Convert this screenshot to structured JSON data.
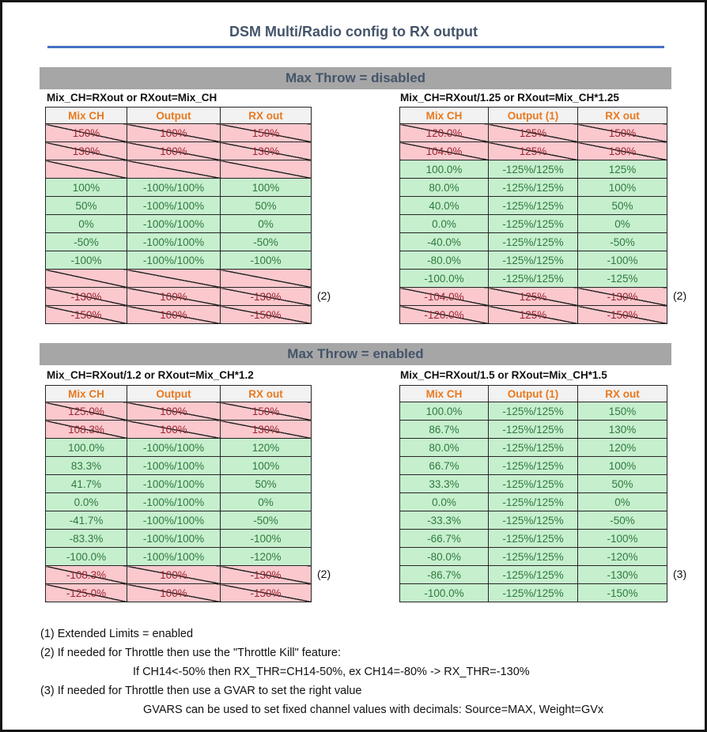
{
  "title": "DSM Multi/Radio config to RX output",
  "colors": {
    "heading_text": "#44546A",
    "title_rule": "#4472C4",
    "section_band_bg": "#A6A6A6",
    "column_header_bg": "#F2F2F2",
    "column_header_text": "#E8791E",
    "good_bg": "#C6EFCE",
    "good_text": "#2F7A3D",
    "bad_bg": "#FAC8CD",
    "bad_text": "#9C2632"
  },
  "sections": [
    {
      "heading": "Max Throw = disabled",
      "tables": [
        {
          "subtitle": "Mix_CH=RXout or RXout=Mix_CH",
          "columns": [
            "Mix CH",
            "Output",
            "RX out"
          ],
          "note": "(2)",
          "rows": [
            {
              "state": "crossed",
              "cells": [
                "150%",
                "100%",
                "150%"
              ]
            },
            {
              "state": "crossed",
              "cells": [
                "130%",
                "100%",
                "130%"
              ]
            },
            {
              "state": "crossed",
              "cells": [
                "",
                "",
                ""
              ]
            },
            {
              "state": "ok",
              "cells": [
                "100%",
                "-100%/100%",
                "100%"
              ]
            },
            {
              "state": "ok",
              "cells": [
                "50%",
                "-100%/100%",
                "50%"
              ]
            },
            {
              "state": "ok",
              "cells": [
                "0%",
                "-100%/100%",
                "0%"
              ]
            },
            {
              "state": "ok",
              "cells": [
                "-50%",
                "-100%/100%",
                "-50%"
              ]
            },
            {
              "state": "ok",
              "cells": [
                "-100%",
                "-100%/100%",
                "-100%"
              ]
            },
            {
              "state": "crossed",
              "cells": [
                "",
                "",
                ""
              ]
            },
            {
              "state": "crossed",
              "cells": [
                "-130%",
                "100%",
                "-130%"
              ]
            },
            {
              "state": "crossed",
              "cells": [
                "-150%",
                "100%",
                "-150%"
              ]
            }
          ]
        },
        {
          "subtitle": "Mix_CH=RXout/1.25 or RXout=Mix_CH*1.25",
          "columns": [
            "Mix CH",
            "Output (1)",
            "RX out"
          ],
          "note": "(2)",
          "rows": [
            {
              "state": "crossed",
              "cells": [
                "120.0%",
                "125%",
                "150%"
              ]
            },
            {
              "state": "crossed",
              "cells": [
                "104.0%",
                "125%",
                "130%"
              ]
            },
            {
              "state": "ok",
              "cells": [
                "100.0%",
                "-125%/125%",
                "125%"
              ]
            },
            {
              "state": "ok",
              "cells": [
                "80.0%",
                "-125%/125%",
                "100%"
              ]
            },
            {
              "state": "ok",
              "cells": [
                "40.0%",
                "-125%/125%",
                "50%"
              ]
            },
            {
              "state": "ok",
              "cells": [
                "0.0%",
                "-125%/125%",
                "0%"
              ]
            },
            {
              "state": "ok",
              "cells": [
                "-40.0%",
                "-125%/125%",
                "-50%"
              ]
            },
            {
              "state": "ok",
              "cells": [
                "-80.0%",
                "-125%/125%",
                "-100%"
              ]
            },
            {
              "state": "ok",
              "cells": [
                "-100.0%",
                "-125%/125%",
                "-125%"
              ]
            },
            {
              "state": "crossed",
              "cells": [
                "-104.0%",
                "125%",
                "-130%"
              ]
            },
            {
              "state": "crossed",
              "cells": [
                "-120.0%",
                "125%",
                "-150%"
              ]
            }
          ]
        }
      ]
    },
    {
      "heading": "Max Throw = enabled",
      "tables": [
        {
          "subtitle": "Mix_CH=RXout/1.2 or RXout=Mix_CH*1.2",
          "columns": [
            "Mix CH",
            "Output",
            "RX out"
          ],
          "note": "(2)",
          "rows": [
            {
              "state": "crossed",
              "cells": [
                "125.0%",
                "100%",
                "150%"
              ]
            },
            {
              "state": "crossed",
              "cells": [
                "108.3%",
                "100%",
                "130%"
              ]
            },
            {
              "state": "ok",
              "cells": [
                "100.0%",
                "-100%/100%",
                "120%"
              ]
            },
            {
              "state": "ok",
              "cells": [
                "83.3%",
                "-100%/100%",
                "100%"
              ]
            },
            {
              "state": "ok",
              "cells": [
                "41.7%",
                "-100%/100%",
                "50%"
              ]
            },
            {
              "state": "ok",
              "cells": [
                "0.0%",
                "-100%/100%",
                "0%"
              ]
            },
            {
              "state": "ok",
              "cells": [
                "-41.7%",
                "-100%/100%",
                "-50%"
              ]
            },
            {
              "state": "ok",
              "cells": [
                "-83.3%",
                "-100%/100%",
                "-100%"
              ]
            },
            {
              "state": "ok",
              "cells": [
                "-100.0%",
                "-100%/100%",
                "-120%"
              ]
            },
            {
              "state": "crossed",
              "cells": [
                "-108.3%",
                "100%",
                "-130%"
              ]
            },
            {
              "state": "crossed",
              "cells": [
                "-125.0%",
                "100%",
                "-150%"
              ]
            }
          ]
        },
        {
          "subtitle": "Mix_CH=RXout/1.5 or RXout=Mix_CH*1.5",
          "columns": [
            "Mix CH",
            "Output (1)",
            "RX out"
          ],
          "note": "(3)",
          "rows": [
            {
              "state": "ok",
              "cells": [
                "100.0%",
                "-125%/125%",
                "150%"
              ]
            },
            {
              "state": "ok",
              "cells": [
                "86.7%",
                "-125%/125%",
                "130%"
              ]
            },
            {
              "state": "ok",
              "cells": [
                "80.0%",
                "-125%/125%",
                "120%"
              ]
            },
            {
              "state": "ok",
              "cells": [
                "66.7%",
                "-125%/125%",
                "100%"
              ]
            },
            {
              "state": "ok",
              "cells": [
                "33.3%",
                "-125%/125%",
                "50%"
              ]
            },
            {
              "state": "ok",
              "cells": [
                "0.0%",
                "-125%/125%",
                "0%"
              ]
            },
            {
              "state": "ok",
              "cells": [
                "-33.3%",
                "-125%/125%",
                "-50%"
              ]
            },
            {
              "state": "ok",
              "cells": [
                "-66.7%",
                "-125%/125%",
                "-100%"
              ]
            },
            {
              "state": "ok",
              "cells": [
                "-80.0%",
                "-125%/125%",
                "-120%"
              ]
            },
            {
              "state": "ok",
              "cells": [
                "-86.7%",
                "-125%/125%",
                "-130%"
              ]
            },
            {
              "state": "ok",
              "cells": [
                "-100.0%",
                "-125%/125%",
                "-150%"
              ]
            }
          ]
        }
      ]
    }
  ],
  "footnotes": [
    {
      "text": "(1) Extended Limits = enabled",
      "indent": 0
    },
    {
      "text": "(2) If needed for Throttle then use the \"Throttle Kill\" feature:",
      "indent": 0
    },
    {
      "text": "If CH14<-50% then RX_THR=CH14-50%, ex CH14=-80% -> RX_THR=-130%",
      "indent": 1
    },
    {
      "text": "(3) If needed for Throttle then use a GVAR to set the right value",
      "indent": 0
    },
    {
      "text": "GVARS can be used to set fixed channel values with decimals: Source=MAX, Weight=GVx",
      "indent": 2
    }
  ]
}
